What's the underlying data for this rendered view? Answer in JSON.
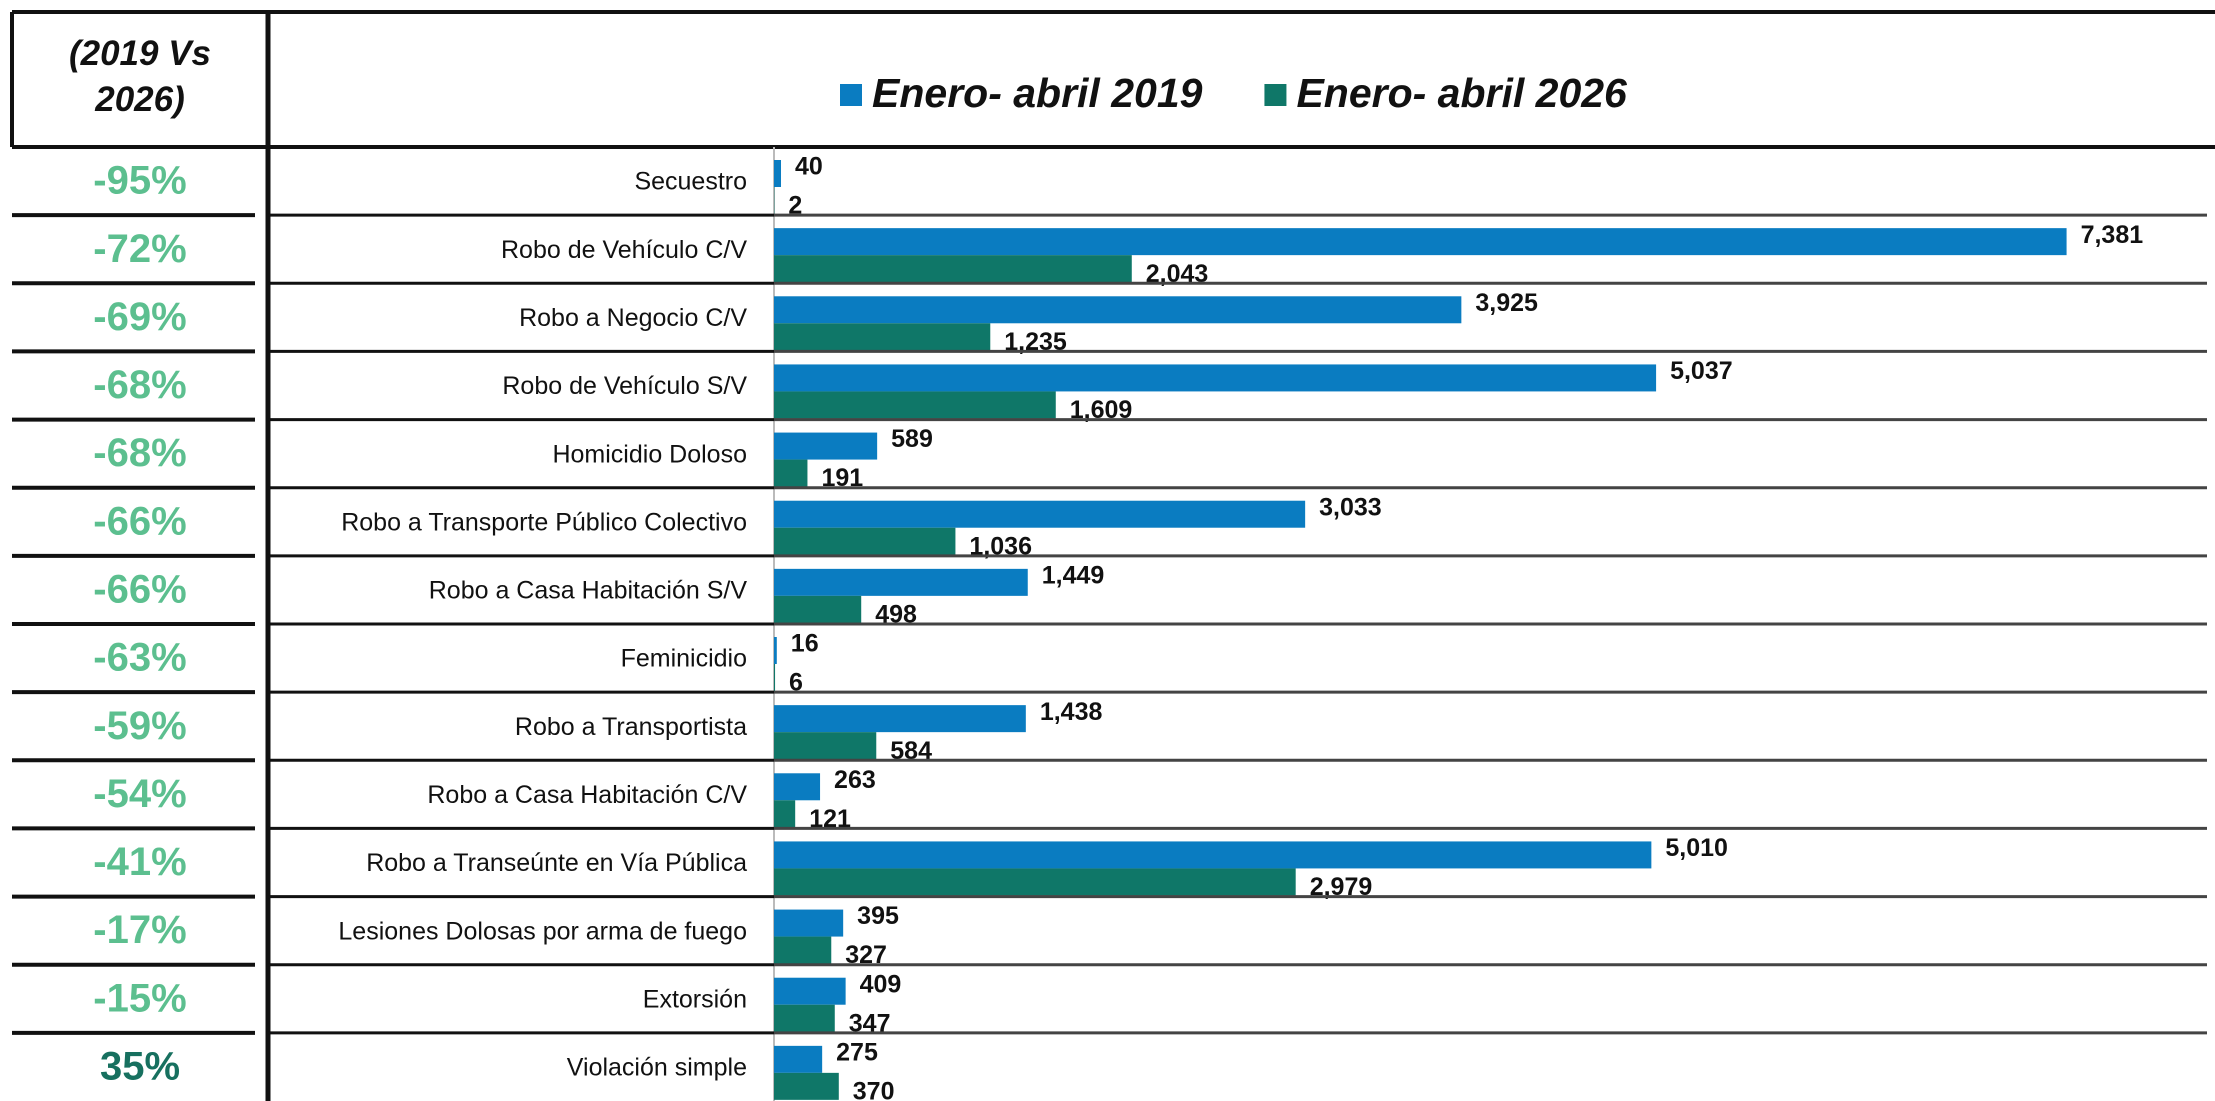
{
  "chart_data": {
    "type": "bar",
    "orientation": "horizontal",
    "change_header": "(2019 Vs 2026)",
    "categories": [
      "Secuestro",
      "Robo de Vehículo C/V",
      "Robo a Negocio C/V",
      "Robo de Vehículo S/V",
      "Homicidio Doloso",
      "Robo a Transporte Público Colectivo",
      "Robo a Casa Habitación S/V",
      "Feminicidio",
      "Robo a Transportista",
      "Robo a Casa Habitación C/V",
      "Robo a Transeúnte en Vía Pública",
      "Lesiones Dolosas por arma de fuego",
      "Extorsión",
      "Violación simple"
    ],
    "change": [
      "-95%",
      "-72%",
      "-69%",
      "-68%",
      "-68%",
      "-66%",
      "-66%",
      "-63%",
      "-59%",
      "-54%",
      "-41%",
      "-17%",
      "-15%",
      "35%"
    ],
    "change_colors": [
      "#5cbf8f",
      "#5cbf8f",
      "#5cbf8f",
      "#5cbf8f",
      "#5cbf8f",
      "#5cbf8f",
      "#5cbf8f",
      "#5cbf8f",
      "#5cbf8f",
      "#5cbf8f",
      "#5cbf8f",
      "#5cbf8f",
      "#5cbf8f",
      "#17705f"
    ],
    "series": [
      {
        "name": "Enero- abril 2019",
        "color": "#0a7cc1",
        "values": [
          40,
          7381,
          3925,
          5037,
          589,
          3033,
          1449,
          16,
          1438,
          263,
          5010,
          395,
          409,
          275
        ],
        "value_labels": [
          "40",
          "7,381",
          "3,925",
          "5,037",
          "589",
          "3,033",
          "1,449",
          "16",
          "1,438",
          "263",
          "5,010",
          "395",
          "409",
          "275"
        ]
      },
      {
        "name": "Enero- abril 2026",
        "color": "#0f7768",
        "values": [
          2,
          2043,
          1235,
          1609,
          191,
          1036,
          498,
          6,
          584,
          121,
          2979,
          327,
          347,
          370
        ],
        "value_labels": [
          "2",
          "2,043",
          "1,235",
          "1,609",
          "191",
          "1,036",
          "498",
          "6",
          "584",
          "121",
          "2,979",
          "327",
          "347",
          "370"
        ]
      }
    ],
    "legend": "top"
  }
}
